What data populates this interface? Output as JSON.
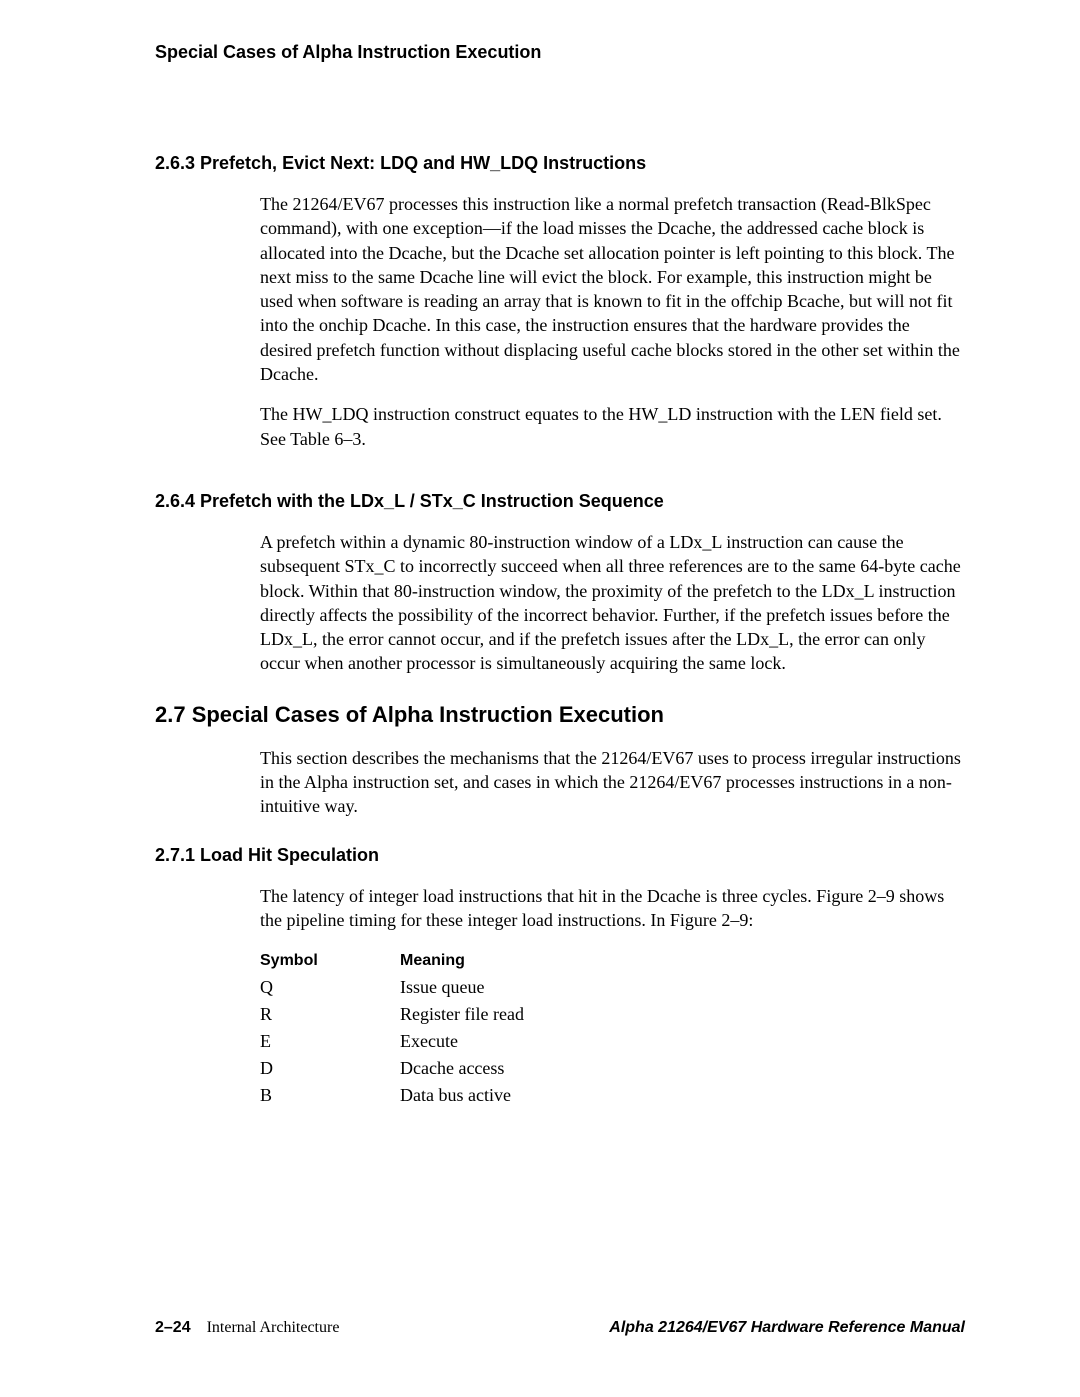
{
  "running_head": "Special Cases of Alpha Instruction Execution",
  "sections": {
    "s263": {
      "heading": "2.6.3  Prefetch, Evict Next: LDQ and HW_LDQ Instructions",
      "p1": "The 21264/EV67 processes this instruction like a normal prefetch transaction (Read-BlkSpec command), with one exception—if the load misses the Dcache, the addressed cache block is allocated into the Dcache, but the Dcache set allocation pointer is left pointing to this block. The next miss to the same Dcache line will evict the block. For example, this instruction might be used when software is reading an array that is known to fit in the offchip Bcache, but will not fit into the onchip Dcache. In this case, the instruction ensures that the hardware provides the desired prefetch function without displacing useful cache blocks stored in the other set within the Dcache.",
      "p2": "The HW_LDQ instruction construct equates to the HW_LD instruction with the LEN field set. See Table 6–3."
    },
    "s264": {
      "heading": "2.6.4  Prefetch with the LDx_L / STx_C Instruction Sequence",
      "p1": "A prefetch within a dynamic 80-instruction window of a LDx_L instruction can cause the subsequent STx_C to incorrectly succeed when all three references are to the same 64-byte cache block. Within that 80-instruction window, the proximity of the prefetch to the LDx_L instruction directly affects the possibility of the incorrect behavior. Further, if the prefetch issues before the LDx_L, the error cannot occur, and if the prefetch issues after the LDx_L, the error can only occur when another processor is simultaneously acquiring the same lock."
    },
    "s27": {
      "heading": "2.7  Special Cases of Alpha Instruction Execution",
      "p1": "This section describes the mechanisms that the 21264/EV67 uses to process irregular instructions in the Alpha instruction set, and cases in which the 21264/EV67 processes instructions in a non-intuitive way."
    },
    "s271": {
      "heading": "2.7.1  Load Hit Speculation",
      "p1": "The latency of integer load instructions that hit in the Dcache is three cycles. Figure 2–9 shows the pipeline timing for these integer load instructions.  In Figure 2–9:"
    }
  },
  "symbol_table": {
    "headers": {
      "symbol": "Symbol",
      "meaning": "Meaning"
    },
    "rows": [
      {
        "symbol": "Q",
        "meaning": "Issue queue"
      },
      {
        "symbol": "R",
        "meaning": "Register file read"
      },
      {
        "symbol": "E",
        "meaning": "Execute"
      },
      {
        "symbol": "D",
        "meaning": "Dcache access"
      },
      {
        "symbol": "B",
        "meaning": "Data bus active"
      }
    ]
  },
  "footer": {
    "page_number": "2–24",
    "chapter": "Internal Architecture",
    "manual": "Alpha 21264/EV67 Hardware Reference Manual"
  }
}
